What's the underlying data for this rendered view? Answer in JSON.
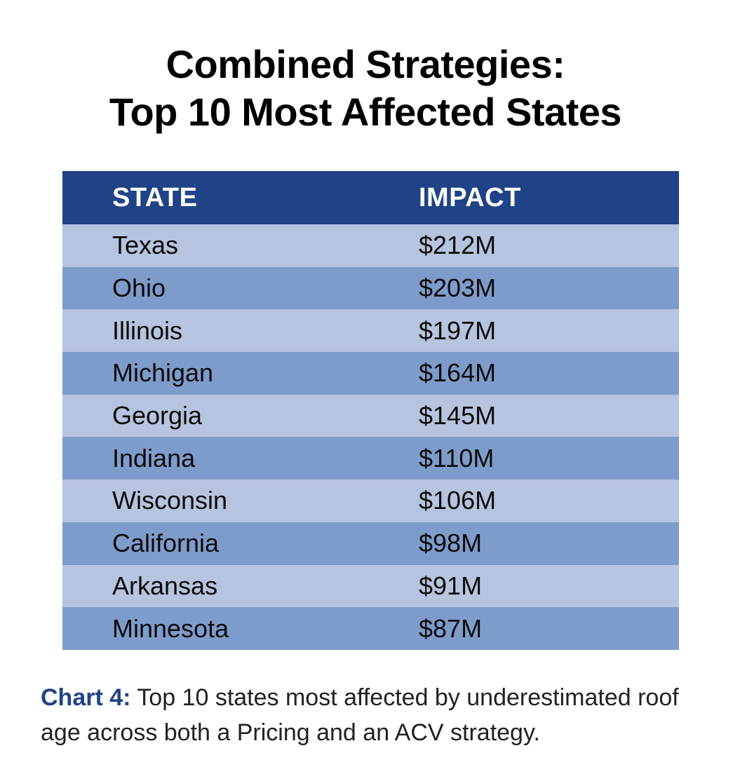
{
  "title_lines": [
    "Combined Strategies:",
    "Top 10 Most Affected States"
  ],
  "chart_data": {
    "type": "table",
    "title": "Combined Strategies: Top 10 Most Affected States",
    "columns": [
      "STATE",
      "IMPACT"
    ],
    "rows": [
      {
        "state": "Texas",
        "impact": "$212M",
        "value_musd": 212
      },
      {
        "state": "Ohio",
        "impact": "$203M",
        "value_musd": 203
      },
      {
        "state": "Illinois",
        "impact": "$197M",
        "value_musd": 197
      },
      {
        "state": "Michigan",
        "impact": "$164M",
        "value_musd": 164
      },
      {
        "state": "Georgia",
        "impact": "$145M",
        "value_musd": 145
      },
      {
        "state": "Indiana",
        "impact": "$110M",
        "value_musd": 110
      },
      {
        "state": "Wisconsin",
        "impact": "$106M",
        "value_musd": 106
      },
      {
        "state": "California",
        "impact": "$98M",
        "value_musd": 98
      },
      {
        "state": "Arkansas",
        "impact": "$91M",
        "value_musd": 91
      },
      {
        "state": "Minnesota",
        "impact": "$87M",
        "value_musd": 87
      }
    ]
  },
  "caption": {
    "lead": "Chart 4:",
    "text": " Top 10 states most affected by underestimated roof age across both a Pricing and an ACV strategy."
  },
  "colors": {
    "header_bg": "#1f4386",
    "row_light": "#b7c4df",
    "row_dark": "#7e9ccb",
    "caption_lead": "#1f4386"
  }
}
